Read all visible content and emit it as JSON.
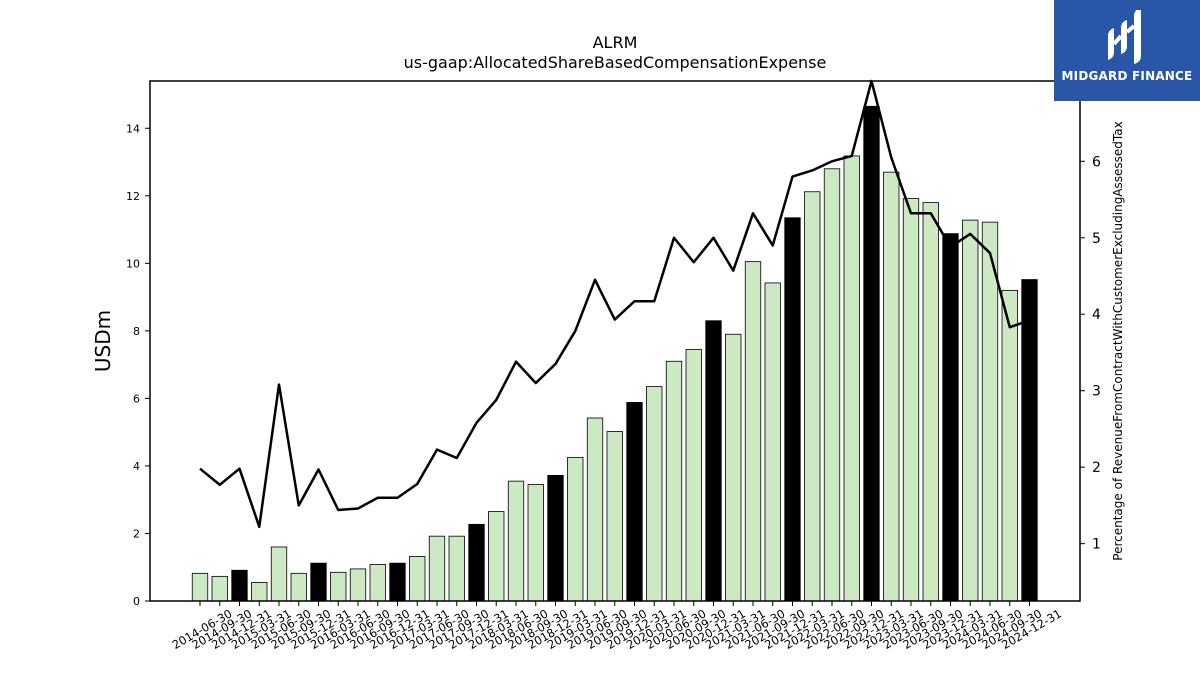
{
  "brand": {
    "name": "MIDGARD FINANCE",
    "color": "#2a56a8"
  },
  "colors": {
    "bar_normal": "#cce9c4",
    "bar_highlight": "#000000",
    "line": "#000000"
  },
  "chart_data": {
    "type": "bar",
    "title": "ALRM",
    "subtitle": "us-gaap:AllocatedShareBasedCompensationExpense",
    "ylabel": "USDm",
    "y2label": "Percentage of RevenueFromContractWithCustomerExcludingAssessedTax",
    "ylim": [
      0,
      15.4
    ],
    "y2lim": [
      0.25,
      7.05
    ],
    "yticks": [
      "0",
      "2",
      "4",
      "6",
      "8",
      "10",
      "12",
      "14"
    ],
    "y2ticks": [
      "1",
      "2",
      "3",
      "4",
      "5",
      "6"
    ],
    "grid": false,
    "categories": [
      "2014-06-30",
      "2014-09-30",
      "2014-12-31",
      "2015-03-31",
      "2015-06-30",
      "2015-09-30",
      "2015-12-31",
      "2016-03-31",
      "2016-06-30",
      "2016-09-30",
      "2016-12-31",
      "2017-03-31",
      "2017-06-30",
      "2017-09-30",
      "2017-12-31",
      "2018-03-31",
      "2018-06-30",
      "2018-09-30",
      "2018-12-31",
      "2019-03-31",
      "2019-06-30",
      "2019-09-30",
      "2019-12-31",
      "2020-03-31",
      "2020-06-30",
      "2020-09-30",
      "2020-12-31",
      "2021-03-31",
      "2021-06-30",
      "2021-09-30",
      "2021-12-31",
      "2022-03-31",
      "2022-06-30",
      "2022-09-30",
      "2022-12-31",
      "2023-03-31",
      "2023-06-30",
      "2023-09-30",
      "2023-12-31",
      "2024-03-31",
      "2024-06-30",
      "2024-09-30",
      "2024-12-31"
    ],
    "series": [
      {
        "axis": "left",
        "kind": "bar",
        "values": [
          0.82,
          0.73,
          0.91,
          0.55,
          1.6,
          0.82,
          1.12,
          0.85,
          0.95,
          1.08,
          1.12,
          1.32,
          1.92,
          1.92,
          2.27,
          2.65,
          3.55,
          3.45,
          3.72,
          4.25,
          5.42,
          5.02,
          5.88,
          6.35,
          7.1,
          7.45,
          8.3,
          7.9,
          10.05,
          9.42,
          11.35,
          12.12,
          12.8,
          13.18,
          14.65,
          12.7,
          11.92,
          11.8,
          10.88,
          11.28,
          11.22,
          9.2,
          9.52
        ],
        "highlight": [
          false,
          false,
          true,
          false,
          false,
          false,
          true,
          false,
          false,
          false,
          true,
          false,
          false,
          false,
          true,
          false,
          false,
          false,
          true,
          false,
          false,
          false,
          true,
          false,
          false,
          false,
          true,
          false,
          false,
          false,
          true,
          false,
          false,
          false,
          true,
          false,
          false,
          false,
          true,
          false,
          false,
          false,
          true
        ]
      },
      {
        "axis": "right",
        "kind": "line",
        "values": [
          1.98,
          1.77,
          1.98,
          1.22,
          3.08,
          1.5,
          1.97,
          1.44,
          1.46,
          1.6,
          1.6,
          1.78,
          2.23,
          2.12,
          2.58,
          2.88,
          3.38,
          3.1,
          3.35,
          3.78,
          4.45,
          3.93,
          4.17,
          4.17,
          5.0,
          4.68,
          5.0,
          4.57,
          5.32,
          4.9,
          5.8,
          5.88,
          6.0,
          6.07,
          7.05,
          6.05,
          5.32,
          5.32,
          4.88,
          5.05,
          4.8,
          3.83,
          3.92
        ]
      }
    ]
  }
}
